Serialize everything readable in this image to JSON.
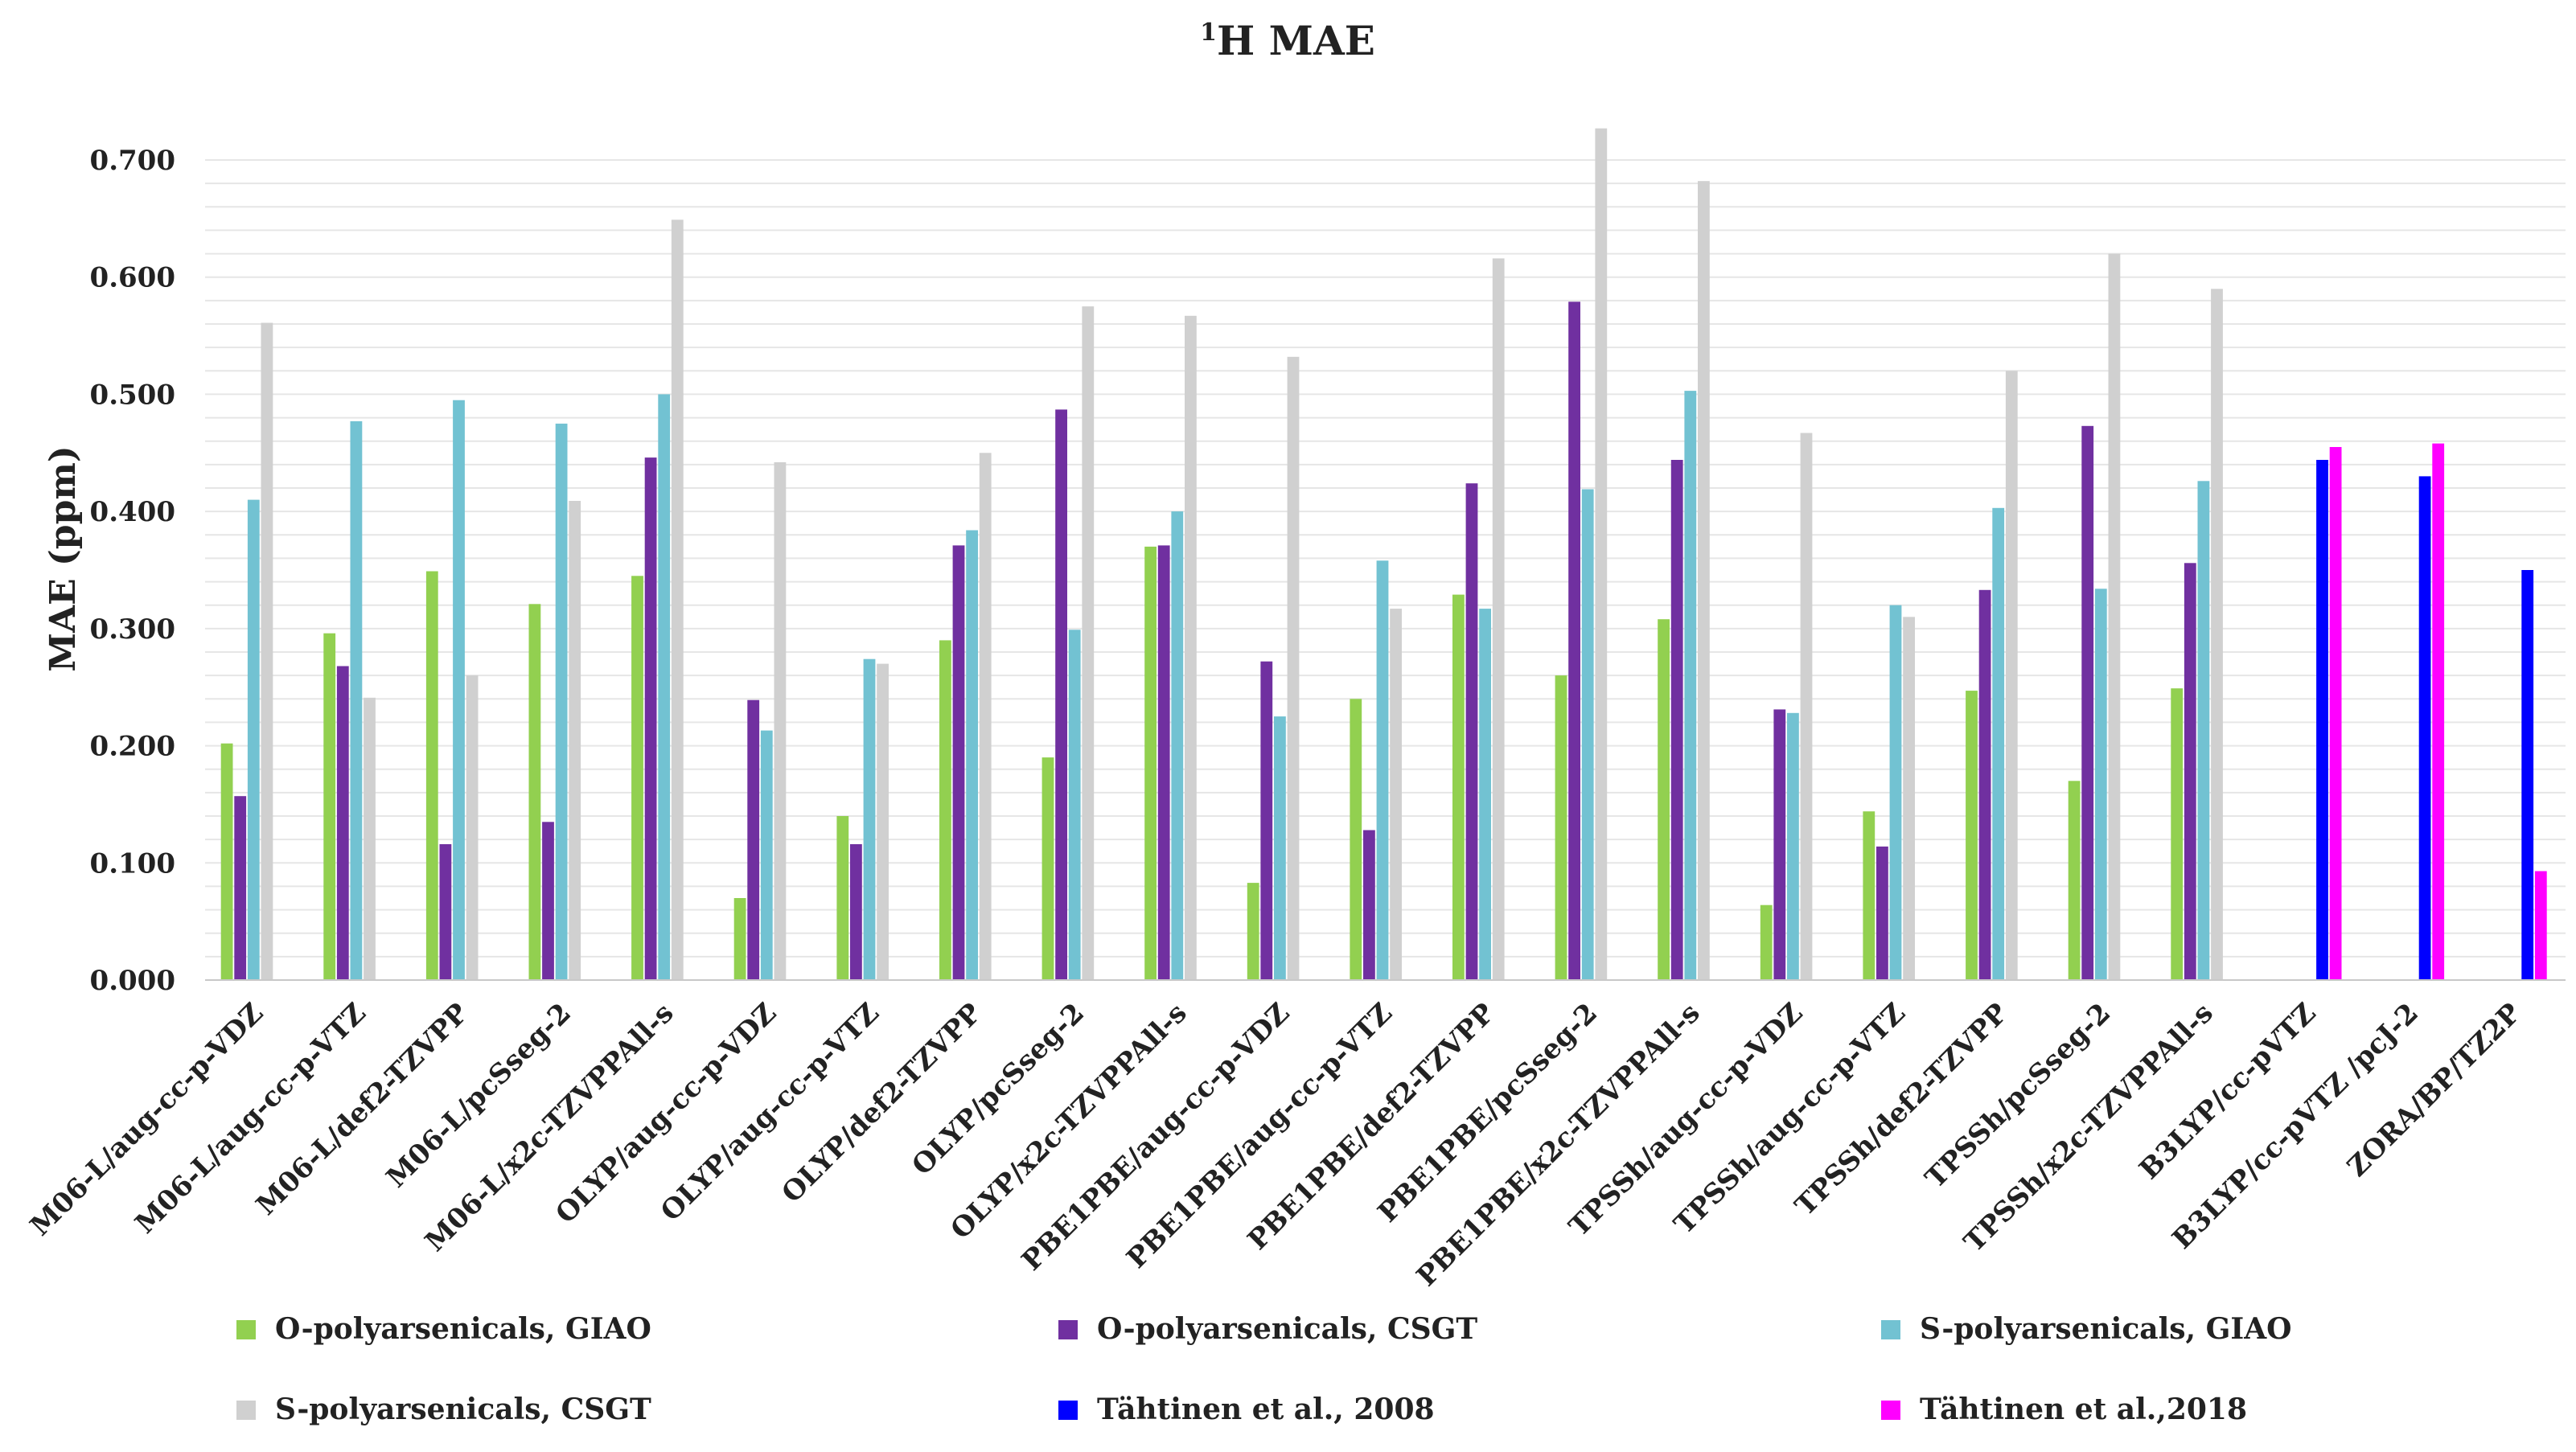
{
  "chart_data": {
    "type": "bar",
    "title_super": "1",
    "title_main": "H MAE",
    "ylabel": "MAE (ppm)",
    "xlabel": "",
    "ylim": [
      0,
      0.7
    ],
    "yticks": [
      "0.000",
      "0.100",
      "0.200",
      "0.300",
      "0.400",
      "0.500",
      "0.600",
      "0.700"
    ],
    "categories": [
      "M06-L/aug-cc-p-VDZ",
      "M06-L/aug-cc-p-VTZ",
      "M06-L/def2-TZVPP",
      "M06-L/pcSseg-2",
      "M06-L/x2c-TZVPPAll-s",
      "OLYP/aug-cc-p-VDZ",
      "OLYP/aug-cc-p-VTZ",
      "OLYP/def2-TZVPP",
      "OLYP/pcSseg-2",
      "OLYP/x2c-TZVPPAll-s",
      "PBE1PBE/aug-cc-p-VDZ",
      "PBE1PBE/aug-cc-p-VTZ",
      "PBE1PBE/def2-TZVPP",
      "PBE1PBE/pcSseg-2",
      "PBE1PBE/x2c-TZVPPAll-s",
      "TPSSh/aug-cc-p-VDZ",
      "TPSSh/aug-cc-p-VTZ",
      "TPSSh/def2-TZVPP",
      "TPSSh/pcSseg-2",
      "TPSSh/x2c-TZVPPAll-s",
      "B3LYP/cc-pVTZ",
      "B3LYP/cc-pVTZ /pcJ-2",
      "ZORA/BP/TZ2P"
    ],
    "series": [
      {
        "name": "O-polyarsenicals, GIAO",
        "color": "#92d050",
        "values": [
          0.202,
          0.296,
          0.349,
          0.321,
          0.345,
          0.07,
          0.14,
          0.29,
          0.19,
          0.37,
          0.083,
          0.24,
          0.329,
          0.26,
          0.308,
          0.064,
          0.144,
          0.247,
          0.17,
          0.249,
          null,
          null,
          null
        ]
      },
      {
        "name": "O-polyarsenicals, CSGT",
        "color": "#7030a0",
        "values": [
          0.157,
          0.268,
          0.116,
          0.135,
          0.446,
          0.239,
          0.116,
          0.371,
          0.487,
          0.371,
          0.272,
          0.128,
          0.424,
          0.579,
          0.444,
          0.231,
          0.114,
          0.333,
          0.473,
          0.356,
          null,
          null,
          null
        ]
      },
      {
        "name": "S-polyarsenicals, GIAO",
        "color": "#72c2d2",
        "values": [
          0.41,
          0.477,
          0.495,
          0.475,
          0.5,
          0.213,
          0.274,
          0.384,
          0.299,
          0.4,
          0.225,
          0.358,
          0.317,
          0.419,
          0.503,
          0.228,
          0.32,
          0.403,
          0.334,
          0.426,
          null,
          null,
          null
        ]
      },
      {
        "name": "S-polyarsenicals, CSGT",
        "color": "#d0d0d0",
        "values": [
          0.561,
          0.241,
          0.26,
          0.409,
          0.649,
          0.442,
          0.27,
          0.45,
          0.575,
          0.567,
          0.532,
          0.317,
          0.616,
          0.727,
          0.682,
          0.467,
          0.31,
          0.52,
          0.62,
          0.59,
          null,
          null,
          null
        ]
      },
      {
        "name": "Tähtinen et al., 2008",
        "color": "#0000ff",
        "values": [
          null,
          null,
          null,
          null,
          null,
          null,
          null,
          null,
          null,
          null,
          null,
          null,
          null,
          null,
          null,
          null,
          null,
          null,
          null,
          null,
          0.444,
          0.43,
          0.35
        ]
      },
      {
        "name": "Tähtinen et al.,2018",
        "color": "#ff00ff",
        "values": [
          null,
          null,
          null,
          null,
          null,
          null,
          null,
          null,
          null,
          null,
          null,
          null,
          null,
          null,
          null,
          null,
          null,
          null,
          null,
          null,
          0.455,
          0.458,
          0.093
        ]
      }
    ],
    "legend_position": "bottom",
    "grid": true
  }
}
